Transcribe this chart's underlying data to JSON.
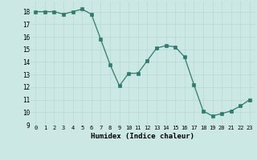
{
  "x": [
    0,
    1,
    2,
    3,
    4,
    5,
    6,
    7,
    8,
    9,
    10,
    11,
    12,
    13,
    14,
    15,
    16,
    17,
    18,
    19,
    20,
    21,
    22,
    23
  ],
  "y": [
    18,
    18,
    18,
    17.8,
    18,
    18.2,
    17.8,
    15.8,
    13.8,
    12.1,
    13.1,
    13.1,
    14.1,
    15.1,
    15.3,
    15.2,
    14.4,
    12.2,
    10.1,
    9.7,
    9.9,
    10.1,
    10.5,
    11
  ],
  "xlabel": "Humidex (Indice chaleur)",
  "xlim": [
    -0.5,
    23.5
  ],
  "ylim": [
    9,
    18.8
  ],
  "yticks": [
    9,
    10,
    11,
    12,
    13,
    14,
    15,
    16,
    17,
    18
  ],
  "xticks": [
    0,
    1,
    2,
    3,
    4,
    5,
    6,
    7,
    8,
    9,
    10,
    11,
    12,
    13,
    14,
    15,
    16,
    17,
    18,
    19,
    20,
    21,
    22,
    23
  ],
  "line_color": "#2d7d6e",
  "marker_color": "#2d7d6e",
  "bg_color": "#cce8e4",
  "grid_color": "#b8d8d4",
  "figsize": [
    3.2,
    2.0
  ],
  "dpi": 100
}
